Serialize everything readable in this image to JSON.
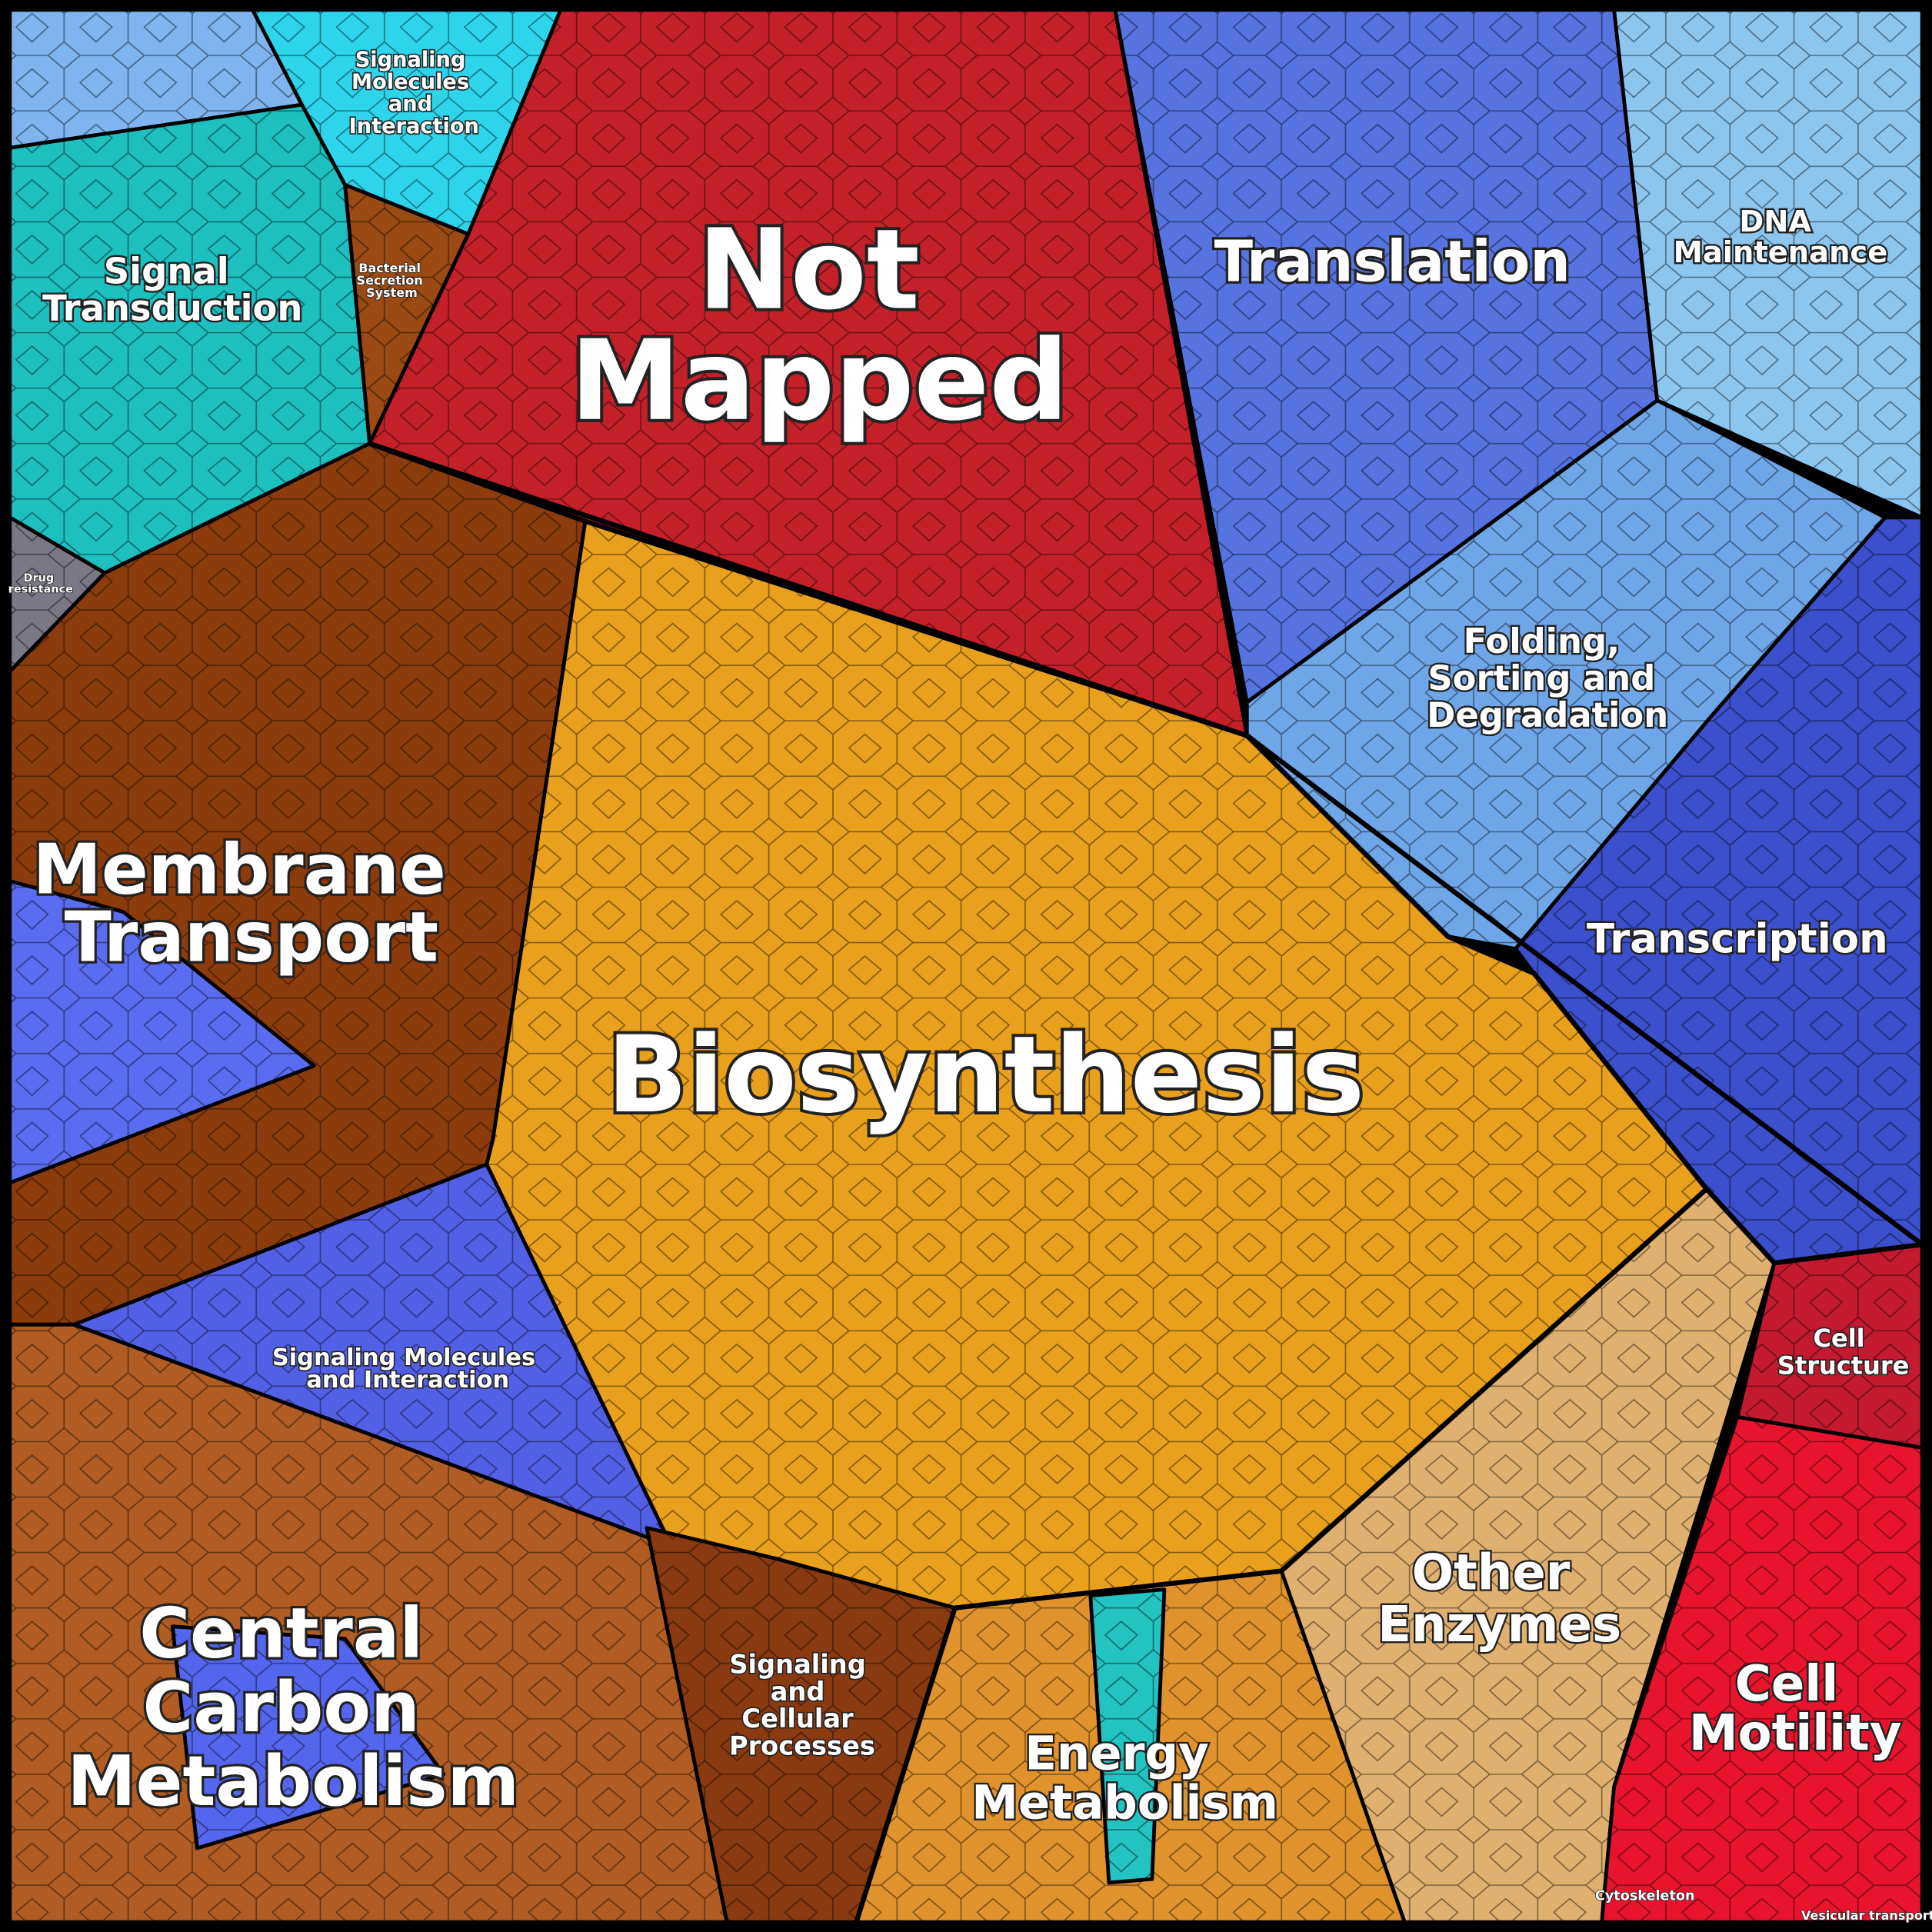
{
  "regions": [
    {
      "lines": [
        "Signaling",
        "Molecules",
        "and",
        "Interaction"
      ]
    },
    {
      "lines": [
        "Signal",
        "Transduction"
      ]
    },
    {
      "lines": [
        "Bacterial",
        "Secretion",
        "System"
      ]
    },
    {
      "lines": [
        "Not",
        "Mapped"
      ]
    },
    {
      "lines": [
        "Translation"
      ]
    },
    {
      "lines": [
        "DNA",
        "Maintenance"
      ]
    },
    {
      "lines": [
        "Folding,",
        "Sorting and",
        "Degradation"
      ]
    },
    {
      "lines": [
        "Transcription"
      ]
    },
    {
      "lines": [
        "Drug",
        "resistance"
      ]
    },
    {
      "lines": [
        "Membrane",
        "Transport"
      ]
    },
    {
      "lines": [
        "Biosynthesis"
      ]
    },
    {
      "lines": [
        "Signaling Molecules",
        "and Interaction"
      ]
    },
    {
      "lines": [
        "Central",
        "Carbon",
        "Metabolism"
      ]
    },
    {
      "lines": [
        "Signaling",
        "and",
        "Cellular",
        "Processes"
      ]
    },
    {
      "lines": [
        "Energy",
        "Metabolism"
      ]
    },
    {
      "lines": [
        "Other",
        "Enzymes"
      ]
    },
    {
      "lines": [
        "Cell",
        "Structure"
      ]
    },
    {
      "lines": [
        "Cell",
        "Motility"
      ]
    },
    {
      "lines": [
        "Cytoskeleton"
      ]
    },
    {
      "lines": [
        "Vesicular transport"
      ]
    }
  ]
}
